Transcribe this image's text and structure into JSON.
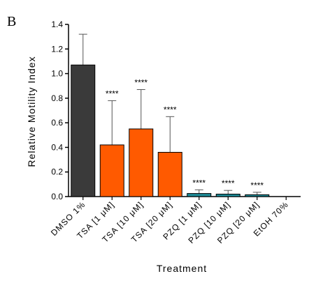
{
  "panel_label": "B",
  "chart_data": {
    "type": "bar",
    "xlabel": "Treatment",
    "ylabel": "Relative Motility Index",
    "ylim": [
      0,
      1.4
    ],
    "yticks": [
      "0.0",
      "0.2",
      "0.4",
      "0.6",
      "0.8",
      "1.0",
      "1.2",
      "1.4"
    ],
    "categories": [
      "DMSO 1%",
      "TSA [1 μM]",
      "TSA [10 μM]",
      "TSA [20 μM]",
      "PZQ [1 μM]",
      "PZQ [10 μM]",
      "PZQ [20 μM]",
      "EtOH 70%"
    ],
    "values": [
      1.07,
      0.42,
      0.55,
      0.36,
      0.025,
      0.02,
      0.015,
      0.0
    ],
    "error_upper": [
      0.25,
      0.36,
      0.32,
      0.29,
      0.03,
      0.03,
      0.02,
      0.0
    ],
    "significance": [
      "",
      "****",
      "****",
      "****",
      "****",
      "****",
      "****",
      ""
    ],
    "bar_colors": [
      "#3a3a3a",
      "#ff5a00",
      "#ff5a00",
      "#ff5a00",
      "#1d8a96",
      "#1d8a96",
      "#1d8a96",
      "#ffffff"
    ],
    "grid": false
  }
}
